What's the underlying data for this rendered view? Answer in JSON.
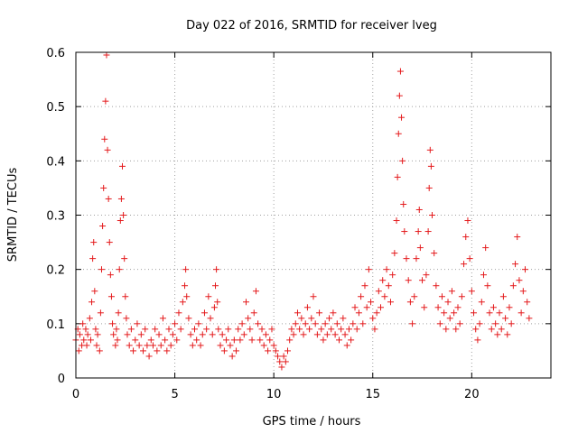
{
  "chart_data": {
    "type": "scatter",
    "title": "Day 022 of 2016, SRMTID for receiver lveg",
    "xlabel": "GPS time / hours",
    "ylabel": "SRMTID / TECUs",
    "xlim": [
      0,
      24
    ],
    "ylim": [
      0,
      0.6
    ],
    "xticks": [
      0,
      5,
      10,
      15,
      20
    ],
    "xtick_labels": [
      "0",
      "5",
      "10",
      "15",
      "20"
    ],
    "yticks": [
      0,
      0.1,
      0.2,
      0.3,
      0.4,
      0.5,
      0.6
    ],
    "ytick_labels": [
      "0",
      "0.1",
      "0.2",
      "0.3",
      "0.4",
      "0.5",
      "0.6"
    ],
    "grid": true,
    "marker": "+",
    "color": "#e41a1c",
    "series": [
      {
        "name": "SRMTID",
        "points": [
          [
            0.0,
            0.07
          ],
          [
            0.1,
            0.09
          ],
          [
            0.15,
            0.05
          ],
          [
            0.2,
            0.08
          ],
          [
            0.3,
            0.06
          ],
          [
            0.35,
            0.1
          ],
          [
            0.4,
            0.07
          ],
          [
            0.5,
            0.09
          ],
          [
            0.55,
            0.06
          ],
          [
            0.6,
            0.08
          ],
          [
            0.7,
            0.11
          ],
          [
            0.75,
            0.07
          ],
          [
            0.8,
            0.14
          ],
          [
            0.85,
            0.22
          ],
          [
            0.9,
            0.25
          ],
          [
            0.95,
            0.16
          ],
          [
            1.0,
            0.09
          ],
          [
            1.05,
            0.06
          ],
          [
            1.1,
            0.08
          ],
          [
            1.2,
            0.05
          ],
          [
            1.25,
            0.12
          ],
          [
            1.3,
            0.2
          ],
          [
            1.35,
            0.28
          ],
          [
            1.4,
            0.35
          ],
          [
            1.45,
            0.44
          ],
          [
            1.5,
            0.51
          ],
          [
            1.55,
            0.595
          ],
          [
            1.6,
            0.42
          ],
          [
            1.65,
            0.33
          ],
          [
            1.7,
            0.25
          ],
          [
            1.75,
            0.19
          ],
          [
            1.8,
            0.15
          ],
          [
            1.85,
            0.1
          ],
          [
            1.9,
            0.08
          ],
          [
            2.0,
            0.06
          ],
          [
            2.05,
            0.09
          ],
          [
            2.1,
            0.07
          ],
          [
            2.15,
            0.12
          ],
          [
            2.2,
            0.2
          ],
          [
            2.25,
            0.29
          ],
          [
            2.3,
            0.33
          ],
          [
            2.35,
            0.39
          ],
          [
            2.4,
            0.3
          ],
          [
            2.45,
            0.22
          ],
          [
            2.5,
            0.15
          ],
          [
            2.55,
            0.11
          ],
          [
            2.6,
            0.08
          ],
          [
            2.7,
            0.06
          ],
          [
            2.8,
            0.09
          ],
          [
            2.9,
            0.05
          ],
          [
            3.0,
            0.07
          ],
          [
            3.1,
            0.1
          ],
          [
            3.2,
            0.06
          ],
          [
            3.3,
            0.08
          ],
          [
            3.4,
            0.05
          ],
          [
            3.5,
            0.09
          ],
          [
            3.6,
            0.06
          ],
          [
            3.7,
            0.04
          ],
          [
            3.8,
            0.07
          ],
          [
            3.9,
            0.06
          ],
          [
            4.0,
            0.09
          ],
          [
            4.1,
            0.05
          ],
          [
            4.2,
            0.08
          ],
          [
            4.3,
            0.06
          ],
          [
            4.4,
            0.11
          ],
          [
            4.5,
            0.07
          ],
          [
            4.6,
            0.05
          ],
          [
            4.7,
            0.09
          ],
          [
            4.8,
            0.06
          ],
          [
            4.9,
            0.08
          ],
          [
            5.0,
            0.1
          ],
          [
            5.1,
            0.07
          ],
          [
            5.2,
            0.12
          ],
          [
            5.3,
            0.09
          ],
          [
            5.4,
            0.14
          ],
          [
            5.5,
            0.17
          ],
          [
            5.55,
            0.2
          ],
          [
            5.6,
            0.15
          ],
          [
            5.7,
            0.11
          ],
          [
            5.8,
            0.08
          ],
          [
            5.9,
            0.06
          ],
          [
            6.0,
            0.09
          ],
          [
            6.1,
            0.07
          ],
          [
            6.2,
            0.1
          ],
          [
            6.3,
            0.06
          ],
          [
            6.4,
            0.08
          ],
          [
            6.5,
            0.12
          ],
          [
            6.6,
            0.09
          ],
          [
            6.7,
            0.15
          ],
          [
            6.8,
            0.11
          ],
          [
            6.9,
            0.08
          ],
          [
            7.0,
            0.13
          ],
          [
            7.05,
            0.17
          ],
          [
            7.1,
            0.2
          ],
          [
            7.15,
            0.14
          ],
          [
            7.2,
            0.09
          ],
          [
            7.3,
            0.06
          ],
          [
            7.4,
            0.08
          ],
          [
            7.5,
            0.05
          ],
          [
            7.6,
            0.07
          ],
          [
            7.7,
            0.09
          ],
          [
            7.8,
            0.06
          ],
          [
            7.9,
            0.04
          ],
          [
            8.0,
            0.07
          ],
          [
            8.1,
            0.05
          ],
          [
            8.2,
            0.09
          ],
          [
            8.3,
            0.07
          ],
          [
            8.4,
            0.1
          ],
          [
            8.5,
            0.08
          ],
          [
            8.6,
            0.14
          ],
          [
            8.7,
            0.11
          ],
          [
            8.8,
            0.09
          ],
          [
            8.9,
            0.07
          ],
          [
            9.0,
            0.12
          ],
          [
            9.1,
            0.16
          ],
          [
            9.2,
            0.1
          ],
          [
            9.3,
            0.07
          ],
          [
            9.4,
            0.09
          ],
          [
            9.5,
            0.06
          ],
          [
            9.6,
            0.08
          ],
          [
            9.7,
            0.05
          ],
          [
            9.8,
            0.07
          ],
          [
            9.9,
            0.09
          ],
          [
            10.0,
            0.06
          ],
          [
            10.1,
            0.05
          ],
          [
            10.2,
            0.04
          ],
          [
            10.3,
            0.03
          ],
          [
            10.4,
            0.02
          ],
          [
            10.5,
            0.04
          ],
          [
            10.6,
            0.03
          ],
          [
            10.7,
            0.05
          ],
          [
            10.8,
            0.07
          ],
          [
            10.9,
            0.09
          ],
          [
            11.0,
            0.08
          ],
          [
            11.1,
            0.1
          ],
          [
            11.2,
            0.12
          ],
          [
            11.3,
            0.09
          ],
          [
            11.4,
            0.11
          ],
          [
            11.5,
            0.08
          ],
          [
            11.6,
            0.1
          ],
          [
            11.7,
            0.13
          ],
          [
            11.8,
            0.09
          ],
          [
            11.9,
            0.11
          ],
          [
            12.0,
            0.15
          ],
          [
            12.1,
            0.1
          ],
          [
            12.2,
            0.08
          ],
          [
            12.3,
            0.12
          ],
          [
            12.4,
            0.09
          ],
          [
            12.5,
            0.07
          ],
          [
            12.6,
            0.1
          ],
          [
            12.7,
            0.08
          ],
          [
            12.8,
            0.11
          ],
          [
            12.9,
            0.09
          ],
          [
            13.0,
            0.12
          ],
          [
            13.1,
            0.08
          ],
          [
            13.2,
            0.1
          ],
          [
            13.3,
            0.07
          ],
          [
            13.4,
            0.09
          ],
          [
            13.5,
            0.11
          ],
          [
            13.6,
            0.08
          ],
          [
            13.7,
            0.06
          ],
          [
            13.8,
            0.09
          ],
          [
            13.9,
            0.07
          ],
          [
            14.0,
            0.1
          ],
          [
            14.1,
            0.13
          ],
          [
            14.2,
            0.09
          ],
          [
            14.3,
            0.12
          ],
          [
            14.4,
            0.15
          ],
          [
            14.5,
            0.1
          ],
          [
            14.6,
            0.17
          ],
          [
            14.7,
            0.13
          ],
          [
            14.8,
            0.2
          ],
          [
            14.9,
            0.14
          ],
          [
            15.0,
            0.11
          ],
          [
            15.1,
            0.09
          ],
          [
            15.2,
            0.12
          ],
          [
            15.3,
            0.16
          ],
          [
            15.4,
            0.13
          ],
          [
            15.5,
            0.18
          ],
          [
            15.6,
            0.15
          ],
          [
            15.7,
            0.2
          ],
          [
            15.8,
            0.17
          ],
          [
            15.9,
            0.14
          ],
          [
            16.0,
            0.19
          ],
          [
            16.1,
            0.23
          ],
          [
            16.2,
            0.29
          ],
          [
            16.25,
            0.37
          ],
          [
            16.3,
            0.45
          ],
          [
            16.35,
            0.52
          ],
          [
            16.4,
            0.565
          ],
          [
            16.45,
            0.48
          ],
          [
            16.5,
            0.4
          ],
          [
            16.55,
            0.32
          ],
          [
            16.6,
            0.27
          ],
          [
            16.7,
            0.22
          ],
          [
            16.8,
            0.18
          ],
          [
            16.9,
            0.14
          ],
          [
            17.0,
            0.1
          ],
          [
            17.1,
            0.15
          ],
          [
            17.2,
            0.22
          ],
          [
            17.3,
            0.27
          ],
          [
            17.35,
            0.31
          ],
          [
            17.4,
            0.24
          ],
          [
            17.5,
            0.18
          ],
          [
            17.6,
            0.13
          ],
          [
            17.7,
            0.19
          ],
          [
            17.8,
            0.27
          ],
          [
            17.85,
            0.35
          ],
          [
            17.9,
            0.42
          ],
          [
            17.95,
            0.39
          ],
          [
            18.0,
            0.3
          ],
          [
            18.1,
            0.23
          ],
          [
            18.2,
            0.17
          ],
          [
            18.3,
            0.13
          ],
          [
            18.4,
            0.1
          ],
          [
            18.5,
            0.15
          ],
          [
            18.6,
            0.12
          ],
          [
            18.7,
            0.09
          ],
          [
            18.8,
            0.14
          ],
          [
            18.9,
            0.11
          ],
          [
            19.0,
            0.16
          ],
          [
            19.1,
            0.12
          ],
          [
            19.2,
            0.09
          ],
          [
            19.3,
            0.13
          ],
          [
            19.4,
            0.1
          ],
          [
            19.5,
            0.15
          ],
          [
            19.6,
            0.21
          ],
          [
            19.7,
            0.26
          ],
          [
            19.8,
            0.29
          ],
          [
            19.9,
            0.22
          ],
          [
            20.0,
            0.16
          ],
          [
            20.1,
            0.12
          ],
          [
            20.2,
            0.09
          ],
          [
            20.3,
            0.07
          ],
          [
            20.4,
            0.1
          ],
          [
            20.5,
            0.14
          ],
          [
            20.6,
            0.19
          ],
          [
            20.7,
            0.24
          ],
          [
            20.8,
            0.17
          ],
          [
            20.9,
            0.12
          ],
          [
            21.0,
            0.09
          ],
          [
            21.1,
            0.13
          ],
          [
            21.2,
            0.1
          ],
          [
            21.3,
            0.08
          ],
          [
            21.4,
            0.12
          ],
          [
            21.5,
            0.09
          ],
          [
            21.6,
            0.15
          ],
          [
            21.7,
            0.11
          ],
          [
            21.8,
            0.08
          ],
          [
            21.9,
            0.13
          ],
          [
            22.0,
            0.1
          ],
          [
            22.1,
            0.17
          ],
          [
            22.2,
            0.21
          ],
          [
            22.3,
            0.26
          ],
          [
            22.4,
            0.18
          ],
          [
            22.5,
            0.12
          ],
          [
            22.6,
            0.16
          ],
          [
            22.7,
            0.2
          ],
          [
            22.8,
            0.14
          ],
          [
            22.9,
            0.11
          ]
        ]
      }
    ]
  }
}
